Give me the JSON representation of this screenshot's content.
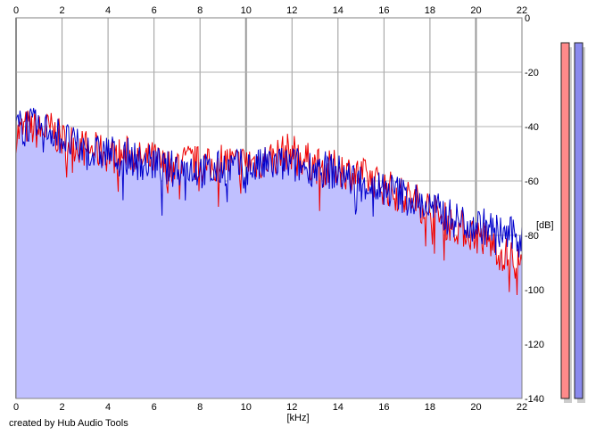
{
  "chart_data": {
    "type": "line",
    "xlabel": "[kHz]",
    "ylabel": "[dB]",
    "xlim": [
      0,
      22
    ],
    "ylim": [
      -140,
      0
    ],
    "x_ticks": [
      0,
      2,
      4,
      6,
      8,
      10,
      12,
      14,
      16,
      18,
      20,
      22
    ],
    "y_ticks": [
      0,
      -20,
      -40,
      -60,
      -80,
      -100,
      -120,
      -140
    ],
    "grid": true,
    "series": [
      {
        "color": "#ee0000",
        "x": [
          0,
          0.5,
          1,
          1.5,
          2,
          2.5,
          3,
          3.5,
          4,
          4.5,
          5,
          5.5,
          6,
          6.5,
          7,
          7.5,
          8,
          8.5,
          9,
          9.5,
          10,
          10.5,
          11,
          11.5,
          12,
          12.5,
          13,
          13.5,
          14,
          14.5,
          15,
          15.5,
          16,
          16.5,
          17,
          17.5,
          18,
          18.5,
          19,
          19.5,
          20,
          20.5,
          21,
          21.5,
          22
        ],
        "values": [
          -43,
          -40,
          -42,
          -41,
          -45,
          -46,
          -48,
          -49,
          -50,
          -51,
          -50,
          -53,
          -52,
          -55,
          -54,
          -53,
          -54,
          -55,
          -52,
          -54,
          -53,
          -53,
          -52,
          -50,
          -49,
          -52,
          -54,
          -56,
          -55,
          -57,
          -58,
          -60,
          -62,
          -64,
          -66,
          -68,
          -70,
          -74,
          -76,
          -78,
          -80,
          -82,
          -86,
          -88,
          -92
        ]
      },
      {
        "color": "#0000cc",
        "x": [
          0,
          0.5,
          1,
          1.5,
          2,
          2.5,
          3,
          3.5,
          4,
          4.5,
          5,
          5.5,
          6,
          6.5,
          7,
          7.5,
          8,
          8.5,
          9,
          9.5,
          10,
          10.5,
          11,
          11.5,
          12,
          12.5,
          13,
          13.5,
          14,
          14.5,
          15,
          15.5,
          16,
          16.5,
          17,
          17.5,
          18,
          18.5,
          19,
          19.5,
          20,
          20.5,
          21,
          21.5,
          22
        ],
        "values": [
          -41,
          -39,
          -41,
          -41,
          -44,
          -47,
          -49,
          -50,
          -49,
          -52,
          -51,
          -54,
          -53,
          -56,
          -55,
          -55,
          -56,
          -57,
          -55,
          -55,
          -55,
          -55,
          -54,
          -54,
          -54,
          -55,
          -55,
          -56,
          -57,
          -59,
          -60,
          -62,
          -63,
          -64,
          -66,
          -68,
          -70,
          -72,
          -74,
          -75,
          -76,
          -77,
          -79,
          -80,
          -81
        ]
      }
    ],
    "level_meters": [
      {
        "color": "#ff8a8a"
      },
      {
        "color": "#8a8aee"
      }
    ]
  },
  "footer": {
    "credit": "created by Hub Audio Tools"
  }
}
